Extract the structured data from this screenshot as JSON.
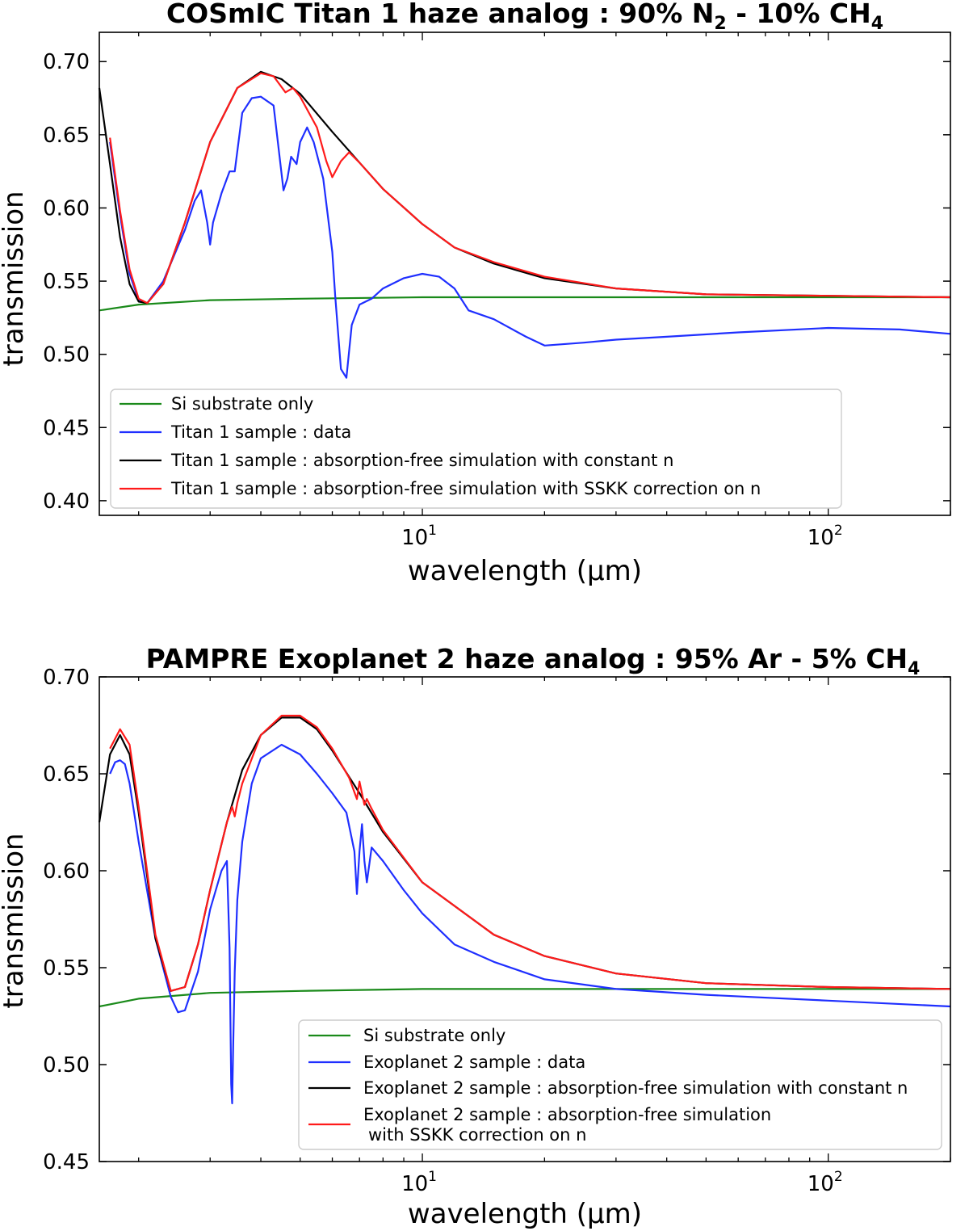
{
  "chart_data": [
    {
      "type": "line",
      "title": "COSmIC Titan 1 haze analog : 90% N",
      "title_sub_1": "2",
      "title_mid": " - 10% CH",
      "title_sub_2": "4",
      "xlabel": "wavelength (μm)",
      "ylabel": "transmission",
      "xscale": "log",
      "xlim": [
        1.6,
        200
      ],
      "ylim": [
        0.39,
        0.72
      ],
      "yticks": [
        0.4,
        0.45,
        0.5,
        0.55,
        0.6,
        0.65,
        0.7
      ],
      "ytick_labels": [
        "0.40",
        "0.45",
        "0.50",
        "0.55",
        "0.60",
        "0.65",
        "0.70"
      ],
      "xtick_labels": [
        {
          "base": "10",
          "exp": "1",
          "value": 10
        },
        {
          "base": "10",
          "exp": "2",
          "value": 100
        }
      ],
      "legend_position": "lower-left",
      "series": [
        {
          "name": "Si substrate only",
          "color": "#1a8a1a",
          "x": [
            1.6,
            2,
            3,
            5,
            10,
            50,
            200
          ],
          "y": [
            0.53,
            0.534,
            0.537,
            0.538,
            0.539,
            0.539,
            0.539
          ]
        },
        {
          "name": "Titan 1 sample : data",
          "color": "#1f2fff",
          "x": [
            1.7,
            1.8,
            1.9,
            2.0,
            2.1,
            2.3,
            2.6,
            2.75,
            2.85,
            2.95,
            3.0,
            3.05,
            3.2,
            3.35,
            3.45,
            3.6,
            3.8,
            4.0,
            4.3,
            4.55,
            4.65,
            4.75,
            4.9,
            5.0,
            5.2,
            5.4,
            5.7,
            6.0,
            6.1,
            6.3,
            6.5,
            6.7,
            7.0,
            7.5,
            8.0,
            9.0,
            10.0,
            11.0,
            12.0,
            13.0,
            15.0,
            18.0,
            20.0,
            25.0,
            30.0,
            40.0,
            60.0,
            100.0,
            150.0,
            200.0
          ],
          "y": [
            0.645,
            0.595,
            0.555,
            0.537,
            0.535,
            0.55,
            0.585,
            0.605,
            0.612,
            0.59,
            0.575,
            0.59,
            0.61,
            0.625,
            0.625,
            0.665,
            0.675,
            0.676,
            0.67,
            0.612,
            0.62,
            0.635,
            0.63,
            0.645,
            0.655,
            0.645,
            0.62,
            0.57,
            0.54,
            0.49,
            0.484,
            0.52,
            0.534,
            0.538,
            0.545,
            0.552,
            0.555,
            0.553,
            0.545,
            0.53,
            0.524,
            0.512,
            0.506,
            0.508,
            0.51,
            0.512,
            0.515,
            0.518,
            0.517,
            0.514
          ]
        },
        {
          "name": "Titan 1 sample : absorption-free simulation with constant n",
          "color": "#000000",
          "x": [
            1.6,
            1.7,
            1.8,
            1.9,
            2.0,
            2.1,
            2.3,
            2.6,
            3.0,
            3.5,
            4.0,
            4.5,
            5.0,
            6.0,
            7.0,
            8.0,
            10.0,
            12.0,
            15.0,
            20.0,
            30.0,
            50.0,
            100.0,
            200.0
          ],
          "y": [
            0.682,
            0.63,
            0.58,
            0.548,
            0.536,
            0.535,
            0.548,
            0.59,
            0.645,
            0.682,
            0.693,
            0.688,
            0.678,
            0.652,
            0.631,
            0.613,
            0.589,
            0.573,
            0.562,
            0.552,
            0.545,
            0.541,
            0.54,
            0.539
          ]
        },
        {
          "name": "Titan 1 sample : absorption-free simulation with SSKK correction on n",
          "color": "#ff1a1a",
          "x": [
            1.7,
            1.8,
            1.9,
            2.0,
            2.1,
            2.3,
            2.6,
            3.0,
            3.5,
            4.0,
            4.3,
            4.6,
            4.8,
            5.0,
            5.5,
            5.8,
            6.0,
            6.3,
            6.6,
            7.0,
            8.0,
            10.0,
            12.0,
            15.0,
            20.0,
            30.0,
            50.0,
            100.0,
            200.0
          ],
          "y": [
            0.648,
            0.598,
            0.558,
            0.538,
            0.535,
            0.548,
            0.59,
            0.645,
            0.682,
            0.692,
            0.69,
            0.679,
            0.682,
            0.676,
            0.655,
            0.632,
            0.621,
            0.632,
            0.638,
            0.631,
            0.613,
            0.589,
            0.573,
            0.563,
            0.553,
            0.545,
            0.541,
            0.54,
            0.539
          ]
        }
      ]
    },
    {
      "type": "line",
      "title": "PAMPRE Exoplanet 2 haze analog : 95% Ar - 5% CH",
      "title_sub_1": "4",
      "xlabel": "wavelength (μm)",
      "ylabel": "transmission",
      "xscale": "log",
      "xlim": [
        1.6,
        200
      ],
      "ylim": [
        0.45,
        0.7
      ],
      "yticks": [
        0.45,
        0.5,
        0.55,
        0.6,
        0.65,
        0.7
      ],
      "ytick_labels": [
        "0.45",
        "0.50",
        "0.55",
        "0.60",
        "0.65",
        "0.70"
      ],
      "xtick_labels": [
        {
          "base": "10",
          "exp": "1",
          "value": 10
        },
        {
          "base": "10",
          "exp": "2",
          "value": 100
        }
      ],
      "legend_position": "lower-center",
      "series": [
        {
          "name": "Si substrate only",
          "color": "#1a8a1a",
          "x": [
            1.6,
            2,
            3,
            5,
            10,
            50,
            200
          ],
          "y": [
            0.53,
            0.534,
            0.537,
            0.538,
            0.539,
            0.539,
            0.539
          ]
        },
        {
          "name": "Exoplanet 2 sample : data",
          "color": "#1f2fff",
          "x": [
            1.7,
            1.75,
            1.8,
            1.85,
            1.9,
            2.0,
            2.2,
            2.4,
            2.5,
            2.6,
            2.8,
            3.0,
            3.2,
            3.3,
            3.35,
            3.38,
            3.4,
            3.42,
            3.45,
            3.5,
            3.6,
            3.8,
            4.0,
            4.5,
            5.0,
            5.5,
            6.0,
            6.5,
            6.8,
            6.9,
            7.0,
            7.1,
            7.2,
            7.3,
            7.5,
            8.0,
            9.0,
            10.0,
            12.0,
            15.0,
            20.0,
            30.0,
            50.0,
            100.0,
            200.0
          ],
          "y": [
            0.65,
            0.656,
            0.657,
            0.655,
            0.645,
            0.615,
            0.565,
            0.535,
            0.527,
            0.528,
            0.548,
            0.58,
            0.6,
            0.605,
            0.56,
            0.49,
            0.48,
            0.51,
            0.548,
            0.585,
            0.615,
            0.645,
            0.658,
            0.665,
            0.66,
            0.65,
            0.64,
            0.63,
            0.61,
            0.588,
            0.61,
            0.624,
            0.605,
            0.594,
            0.612,
            0.605,
            0.59,
            0.578,
            0.562,
            0.553,
            0.544,
            0.539,
            0.536,
            0.533,
            0.53
          ]
        },
        {
          "name": "Exoplanet 2 sample : absorption-free simulation with constant n",
          "color": "#000000",
          "x": [
            1.6,
            1.7,
            1.8,
            1.9,
            2.0,
            2.2,
            2.4,
            2.6,
            2.8,
            3.0,
            3.3,
            3.6,
            4.0,
            4.5,
            5.0,
            5.5,
            6.0,
            7.0,
            8.0,
            10.0,
            15.0,
            20.0,
            30.0,
            50.0,
            100.0,
            200.0
          ],
          "y": [
            0.625,
            0.66,
            0.67,
            0.66,
            0.63,
            0.565,
            0.538,
            0.54,
            0.562,
            0.59,
            0.625,
            0.652,
            0.67,
            0.679,
            0.679,
            0.673,
            0.662,
            0.64,
            0.62,
            0.594,
            0.567,
            0.556,
            0.547,
            0.542,
            0.54,
            0.539
          ]
        },
        {
          "name": "Exoplanet 2 sample : absorption-free simulation with SSKK correction on n",
          "color": "#ff1a1a",
          "x": [
            1.7,
            1.8,
            1.9,
            2.0,
            2.2,
            2.4,
            2.6,
            2.8,
            3.0,
            3.3,
            3.4,
            3.45,
            3.5,
            3.6,
            4.0,
            4.5,
            5.0,
            5.5,
            6.0,
            6.6,
            6.9,
            7.0,
            7.2,
            7.3,
            7.5,
            8.0,
            10.0,
            15.0,
            20.0,
            30.0,
            50.0,
            100.0,
            200.0
          ],
          "y": [
            0.663,
            0.673,
            0.665,
            0.633,
            0.567,
            0.538,
            0.54,
            0.562,
            0.59,
            0.625,
            0.633,
            0.628,
            0.635,
            0.645,
            0.67,
            0.68,
            0.68,
            0.674,
            0.663,
            0.648,
            0.637,
            0.646,
            0.634,
            0.637,
            0.632,
            0.621,
            0.594,
            0.567,
            0.556,
            0.547,
            0.542,
            0.54,
            0.539
          ]
        }
      ]
    }
  ]
}
